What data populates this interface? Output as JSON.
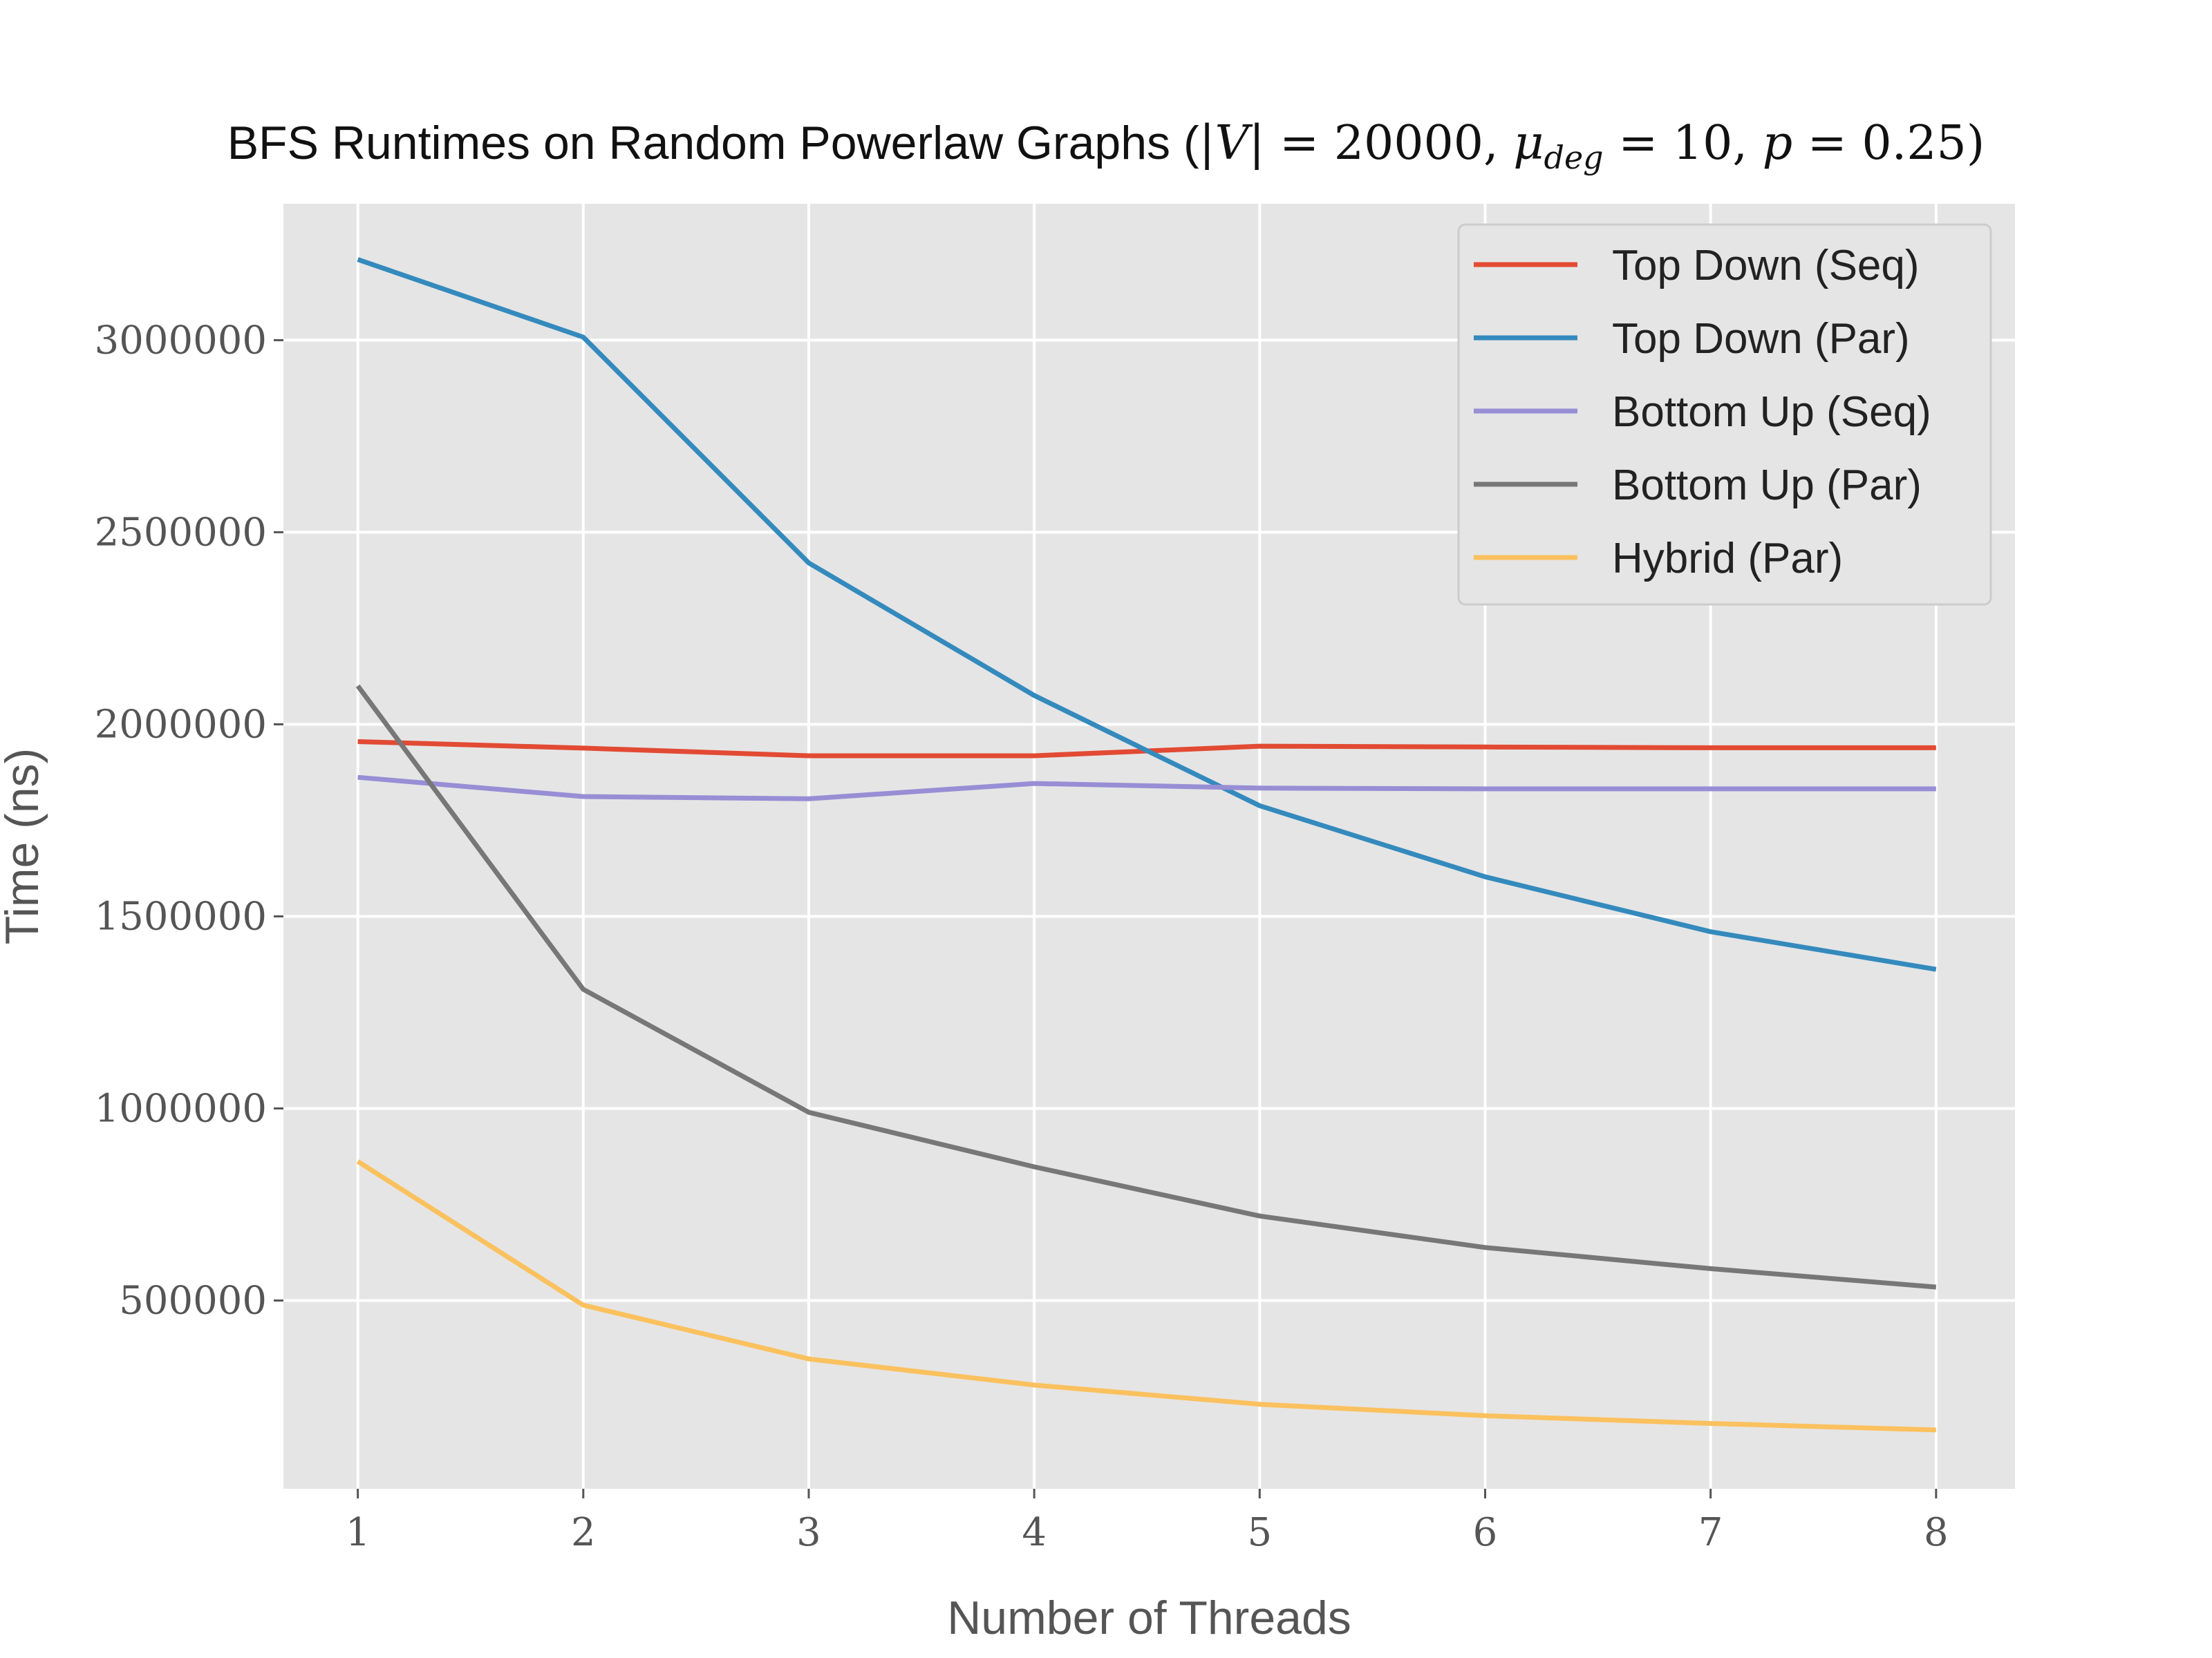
{
  "chart_data": {
    "type": "line",
    "title": {
      "prefix": "BFS Runtimes on Random Powerlaw Graphs (",
      "v_abs": "|V|",
      "v_eq": " = 20000, ",
      "mu": "μ",
      "mu_sub": "deg",
      "mu_eq": " = 10, ",
      "p": "p",
      "p_eq": " = 0.25)"
    },
    "xlabel": "Number of Threads",
    "ylabel": "Time (ns)",
    "x": [
      1,
      2,
      3,
      4,
      5,
      6,
      7,
      8
    ],
    "x_ticks": [
      "1",
      "2",
      "3",
      "4",
      "5",
      "6",
      "7",
      "8"
    ],
    "y_ticks": [
      {
        "value": 500000,
        "label": "500000"
      },
      {
        "value": 1000000,
        "label": "1000000"
      },
      {
        "value": 1500000,
        "label": "1500000"
      },
      {
        "value": 2000000,
        "label": "2000000"
      },
      {
        "value": 2500000,
        "label": "2500000"
      },
      {
        "value": 3000000,
        "label": "3000000"
      }
    ],
    "xlim": [
      0.67,
      8.35
    ],
    "ylim": [
      10000,
      3355000
    ],
    "grid": true,
    "legend_position": "top-right",
    "background": "#e5e5e5",
    "series": [
      {
        "name": "Top Down (Seq)",
        "color": "#e24a33",
        "values": [
          1955000,
          1938000,
          1918000,
          1918000,
          1943000,
          1941000,
          1939000,
          1939000
        ]
      },
      {
        "name": "Top Down (Par)",
        "color": "#348abd",
        "values": [
          3210000,
          3008000,
          2420000,
          2075000,
          1788000,
          1603000,
          1460000,
          1362000
        ]
      },
      {
        "name": "Bottom Up (Seq)",
        "color": "#988ed5",
        "values": [
          1862000,
          1812000,
          1806000,
          1846000,
          1834000,
          1832000,
          1832000,
          1832000
        ]
      },
      {
        "name": "Bottom Up (Par)",
        "color": "#777777",
        "values": [
          2100000,
          1310000,
          990000,
          848000,
          720000,
          638000,
          583000,
          535000
        ]
      },
      {
        "name": "Hybrid (Par)",
        "color": "#fbc15e",
        "values": [
          862000,
          488000,
          348000,
          280000,
          230000,
          200000,
          180000,
          163000
        ]
      }
    ]
  }
}
